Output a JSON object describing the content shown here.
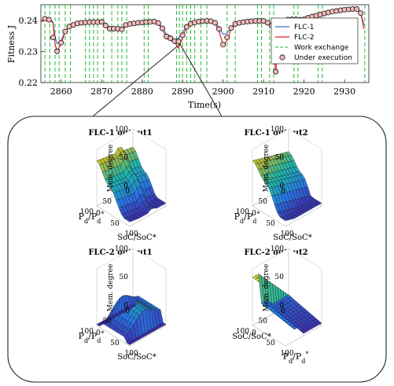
{
  "chart_data": [
    {
      "type": "line",
      "xlabel": "Time(s)",
      "ylabel": "Fitness J",
      "xlim": [
        2855,
        2936
      ],
      "ylim": [
        0.22,
        0.245
      ],
      "x_ticks": [
        "2860",
        "2870",
        "2880",
        "2890",
        "2900",
        "2910",
        "2920",
        "2930"
      ],
      "y_ticks": [
        "0.22",
        "0.23",
        "0.24"
      ],
      "grid": false,
      "legend_position": "top-right",
      "legend": [
        "FLC-1",
        "FLC-2",
        "Work exchange",
        "Under execution"
      ],
      "colors": {
        "flc1": "#3b78c0",
        "flc2": "#e52222",
        "work": "#22bb33",
        "marker": "#111111",
        "marker_fill": "#f3b9b9"
      },
      "series": [
        {
          "name": "FLC-1",
          "x": [
            2855.2,
            2856,
            2857,
            2858,
            2858.5,
            2859,
            2860,
            2861,
            2862,
            2863,
            2864,
            2865,
            2866,
            2867,
            2868,
            2869,
            2870,
            2871,
            2872,
            2873,
            2874,
            2875,
            2876,
            2877,
            2878,
            2879,
            2880,
            2881,
            2882,
            2883,
            2884,
            2885,
            2886,
            2887,
            2888,
            2889,
            2890,
            2891,
            2892,
            2893,
            2894,
            2895,
            2896,
            2897,
            2898,
            2899,
            2900,
            2901,
            2902,
            2903,
            2904,
            2905,
            2906,
            2907,
            2908,
            2909,
            2910,
            2911,
            2912,
            2913,
            2914,
            2915,
            2916,
            2917,
            2918,
            2919,
            2920,
            2921,
            2922,
            2923,
            2924,
            2925,
            2926,
            2927,
            2928,
            2929,
            2930,
            2931,
            2932,
            2933,
            2934,
            2934.8
          ],
          "y": [
            0.2395,
            0.2405,
            0.2402,
            0.2395,
            0.2345,
            0.2325,
            0.2335,
            0.2365,
            0.238,
            0.2385,
            0.239,
            0.2392,
            0.2393,
            0.2394,
            0.2394,
            0.2394,
            0.2395,
            0.2385,
            0.2375,
            0.2375,
            0.2375,
            0.2372,
            0.2385,
            0.2388,
            0.239,
            0.2392,
            0.2393,
            0.2394,
            0.2395,
            0.2396,
            0.2392,
            0.2378,
            0.2355,
            0.235,
            0.2338,
            0.2343,
            0.2362,
            0.238,
            0.239,
            0.2393,
            0.2396,
            0.2397,
            0.2398,
            0.2397,
            0.2393,
            0.2378,
            0.2355,
            0.2358,
            0.2378,
            0.2388,
            0.2392,
            0.2394,
            0.2396,
            0.2397,
            0.2398,
            0.2398,
            0.2398,
            0.2392,
            0.2385,
            0.235,
            0.2385,
            0.2398,
            0.2402,
            0.2403,
            0.2403,
            0.2402,
            0.2403,
            0.2408,
            0.2412,
            0.2415,
            0.2418,
            0.2422,
            0.2425,
            0.2428,
            0.243,
            0.2432,
            0.2434,
            0.2435,
            0.2436,
            0.2436,
            0.2425,
            0.2385
          ]
        },
        {
          "name": "FLC-2",
          "x": [
            2855.2,
            2856,
            2857,
            2858,
            2858.5,
            2859,
            2860,
            2861,
            2862,
            2863,
            2864,
            2865,
            2866,
            2867,
            2868,
            2869,
            2870,
            2871,
            2872,
            2873,
            2874,
            2875,
            2876,
            2877,
            2878,
            2879,
            2880,
            2881,
            2882,
            2883,
            2884,
            2885,
            2886,
            2887,
            2888,
            2889,
            2890,
            2891,
            2892,
            2893,
            2894,
            2895,
            2896,
            2897,
            2898,
            2899,
            2900,
            2901,
            2902,
            2903,
            2904,
            2905,
            2906,
            2907,
            2908,
            2909,
            2910,
            2911,
            2912,
            2913,
            2914,
            2915,
            2916,
            2917,
            2918,
            2919,
            2920,
            2921,
            2922,
            2923,
            2924,
            2925,
            2926,
            2927,
            2928,
            2929,
            2930,
            2931,
            2932,
            2933,
            2934,
            2934.8
          ],
          "y": [
            0.2395,
            0.2405,
            0.2402,
            0.2392,
            0.2325,
            0.23,
            0.2325,
            0.2362,
            0.238,
            0.2385,
            0.239,
            0.2392,
            0.2393,
            0.2394,
            0.2394,
            0.2394,
            0.2395,
            0.2382,
            0.2372,
            0.2372,
            0.2372,
            0.237,
            0.2385,
            0.2388,
            0.239,
            0.2392,
            0.2393,
            0.2394,
            0.2395,
            0.2396,
            0.239,
            0.2372,
            0.2342,
            0.2335,
            0.233,
            0.231,
            0.2345,
            0.2378,
            0.2388,
            0.2393,
            0.2396,
            0.2397,
            0.2398,
            0.2397,
            0.2392,
            0.2365,
            0.232,
            0.2335,
            0.2372,
            0.2388,
            0.2392,
            0.2394,
            0.2396,
            0.2397,
            0.2398,
            0.2398,
            0.2398,
            0.2392,
            0.2382,
            0.2235,
            0.2382,
            0.2398,
            0.2402,
            0.2403,
            0.2403,
            0.2402,
            0.2403,
            0.2408,
            0.2412,
            0.2415,
            0.2418,
            0.2422,
            0.2425,
            0.2428,
            0.243,
            0.2432,
            0.2434,
            0.2435,
            0.2436,
            0.2436,
            0.2422,
            0.2372
          ]
        },
        {
          "name": "Under execution",
          "x": [
            2856,
            2857,
            2858,
            2859,
            2860,
            2861,
            2862,
            2863,
            2864,
            2865,
            2866,
            2867,
            2868,
            2869,
            2870,
            2871,
            2872,
            2873,
            2874,
            2875,
            2876,
            2877,
            2878,
            2879,
            2880,
            2881,
            2882,
            2883,
            2884,
            2885,
            2886,
            2887,
            2888,
            2889,
            2890,
            2891,
            2892,
            2893,
            2894,
            2895,
            2896,
            2897,
            2898,
            2899,
            2900,
            2901,
            2902,
            2903,
            2904,
            2905,
            2906,
            2907,
            2908,
            2909,
            2910,
            2911,
            2912,
            2913,
            2914,
            2915,
            2916,
            2917,
            2918,
            2919,
            2920,
            2921,
            2922,
            2923,
            2924,
            2925,
            2926,
            2927,
            2928,
            2929,
            2930,
            2931,
            2932,
            2933,
            2934
          ],
          "y": [
            0.2405,
            0.2402,
            0.2345,
            0.23,
            0.2328,
            0.2364,
            0.238,
            0.2385,
            0.239,
            0.2392,
            0.2393,
            0.2394,
            0.2394,
            0.2394,
            0.2395,
            0.2383,
            0.2373,
            0.2373,
            0.2373,
            0.2371,
            0.2385,
            0.2388,
            0.239,
            0.2392,
            0.2393,
            0.2394,
            0.2395,
            0.2396,
            0.2391,
            0.2374,
            0.2348,
            0.2342,
            0.2333,
            0.2332,
            0.2352,
            0.2379,
            0.2389,
            0.2393,
            0.2396,
            0.2397,
            0.2398,
            0.2397,
            0.2392,
            0.2372,
            0.2322,
            0.2345,
            0.2375,
            0.2388,
            0.2392,
            0.2394,
            0.2396,
            0.2397,
            0.2398,
            0.2398,
            0.2398,
            0.2392,
            0.2383,
            0.2235,
            0.2384,
            0.2398,
            0.2402,
            0.2403,
            0.2403,
            0.2402,
            0.2403,
            0.2408,
            0.2412,
            0.2415,
            0.2418,
            0.2422,
            0.2425,
            0.2428,
            0.243,
            0.2432,
            0.2434,
            0.2435,
            0.2436,
            0.2436,
            0.2423
          ]
        }
      ],
      "work_exchange_x": [
        2856,
        2857.2,
        2858.5,
        2859.5,
        2861,
        2862.3,
        2866,
        2867,
        2868,
        2869,
        2870.5,
        2872.5,
        2874,
        2875,
        2876.2,
        2880.5,
        2881.5,
        2888.5,
        2889.2,
        2890,
        2891,
        2892,
        2893,
        2894.5,
        2896,
        2901,
        2903,
        2908.5,
        2909.5,
        2911.5,
        2912.5,
        2917.5,
        2918.5,
        2923.5,
        2924.5,
        2935
      ],
      "callout_x": 2890
    },
    {
      "type": "surface",
      "title": "FLC-1 output1",
      "zlabel": "Mem. degree",
      "x_axis": "Pd/Pd*",
      "y_axis": "SoC/SoC*",
      "xlim": [
        0,
        100
      ],
      "ylim": [
        0,
        100
      ],
      "zlim": [
        0,
        100
      ],
      "x_ticks": [
        "0",
        "50",
        "100"
      ],
      "y_ticks": [
        "0",
        "50",
        "100"
      ],
      "z_ticks": [
        "0",
        "50",
        "100"
      ],
      "description_levels": [
        80,
        78,
        70,
        55,
        40,
        20,
        10
      ]
    },
    {
      "type": "surface",
      "title": "FLC-1 output2",
      "zlabel": "Mem. degree",
      "x_axis": "Pd/Pd*",
      "y_axis": "SoC/SoC*",
      "xlim": [
        0,
        100
      ],
      "ylim": [
        0,
        100
      ],
      "zlim": [
        0,
        100
      ],
      "x_ticks": [
        "0",
        "50",
        "100"
      ],
      "y_ticks": [
        "0",
        "50",
        "100"
      ],
      "z_ticks": [
        "0",
        "50",
        "100"
      ],
      "description_levels": [
        80,
        78,
        65,
        50,
        30,
        15,
        10
      ]
    },
    {
      "type": "surface",
      "title": "FLC-2 output1",
      "zlabel": "Mem. degree",
      "x_axis": "Pd/Pd*",
      "y_axis": "SoC/SoC*",
      "xlim": [
        0,
        100
      ],
      "ylim": [
        0,
        100
      ],
      "zlim": [
        0,
        100
      ],
      "x_ticks": [
        "0",
        "50",
        "100"
      ],
      "y_ticks": [
        "0",
        "50",
        "100"
      ],
      "z_ticks": [
        "0",
        "50",
        "100"
      ],
      "description_levels": [
        0,
        25,
        35,
        35,
        30,
        25,
        0
      ]
    },
    {
      "type": "surface",
      "title": "FLC-2 output2",
      "zlabel": "Mem. degree",
      "x_axis": "SoC/SoC*",
      "y_axis": "Pd/Pd*",
      "xlim": [
        0,
        100
      ],
      "ylim": [
        0,
        100
      ],
      "zlim": [
        0,
        100
      ],
      "x_ticks": [
        "0",
        "50",
        "100"
      ],
      "y_ticks": [
        "0",
        "50",
        "100"
      ],
      "z_ticks": [
        "0",
        "50",
        "100"
      ],
      "description_levels": [
        85,
        35,
        25,
        15,
        5
      ]
    }
  ],
  "labels": {
    "main_xlabel": "Time(s)",
    "main_ylabel": "Fitness J",
    "legend_flc1": "FLC-1",
    "legend_flc2": "FLC-2",
    "legend_work": "Work exchange",
    "legend_exec": "Under execution",
    "p1_title": "FLC-1 output1",
    "p2_title": "FLC-1 output2",
    "p3_title": "FLC-2 output1",
    "p4_title": "FLC-2 output2",
    "zlabel": "Mem. degree",
    "soc_label": "SoC/SoC*",
    "pd_main": "P",
    "pd_sub": "d",
    "pd_slash": "/P",
    "pd_star": "*"
  }
}
